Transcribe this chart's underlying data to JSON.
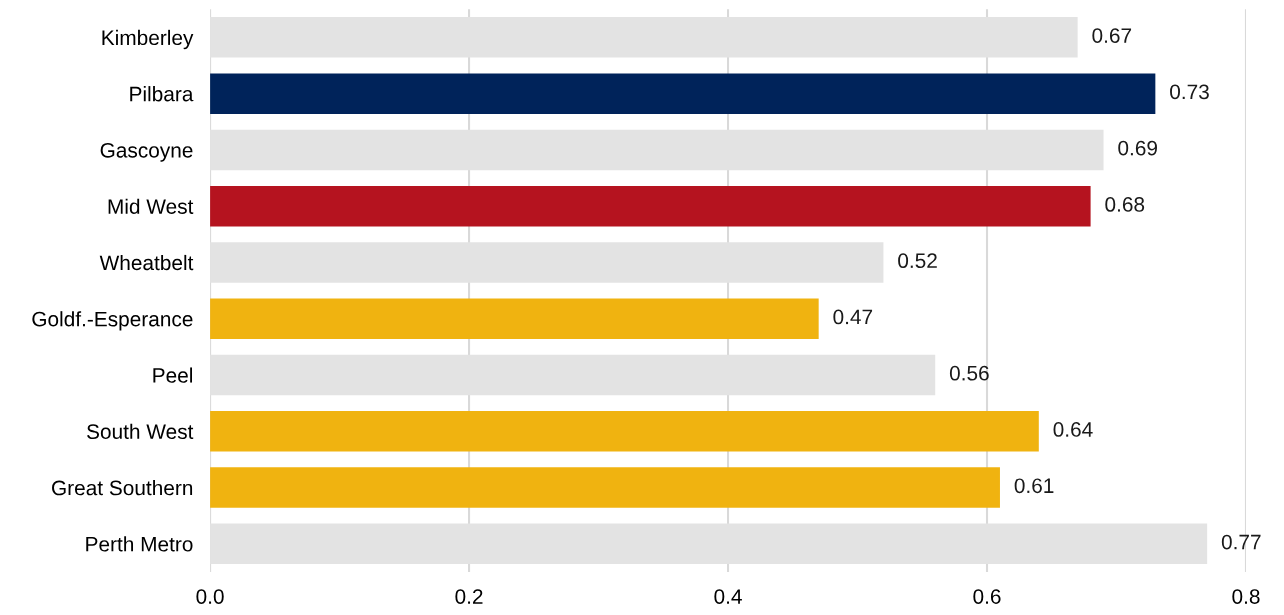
{
  "chart_data": {
    "type": "bar",
    "orientation": "horizontal",
    "categories": [
      "Kimberley",
      "Pilbara",
      "Gascoyne",
      "Mid West",
      "Wheatbelt",
      "Goldf.-Esperance",
      "Peel",
      "South West",
      "Great Southern",
      "Perth Metro"
    ],
    "values": [
      0.67,
      0.73,
      0.69,
      0.68,
      0.52,
      0.47,
      0.56,
      0.64,
      0.61,
      0.77
    ],
    "colors": [
      "#e3e3e3",
      "#00235a",
      "#e3e3e3",
      "#b5131f",
      "#e3e3e3",
      "#f0b310",
      "#e3e3e3",
      "#f0b310",
      "#f0b310",
      "#e3e3e3"
    ],
    "xlim": [
      0,
      0.8
    ],
    "xticks": [
      {
        "value": 0,
        "label": "0.0"
      },
      0.2,
      0.4,
      0.6,
      0.8
    ],
    "grid": "x",
    "data_labels": true,
    "legend": false
  }
}
